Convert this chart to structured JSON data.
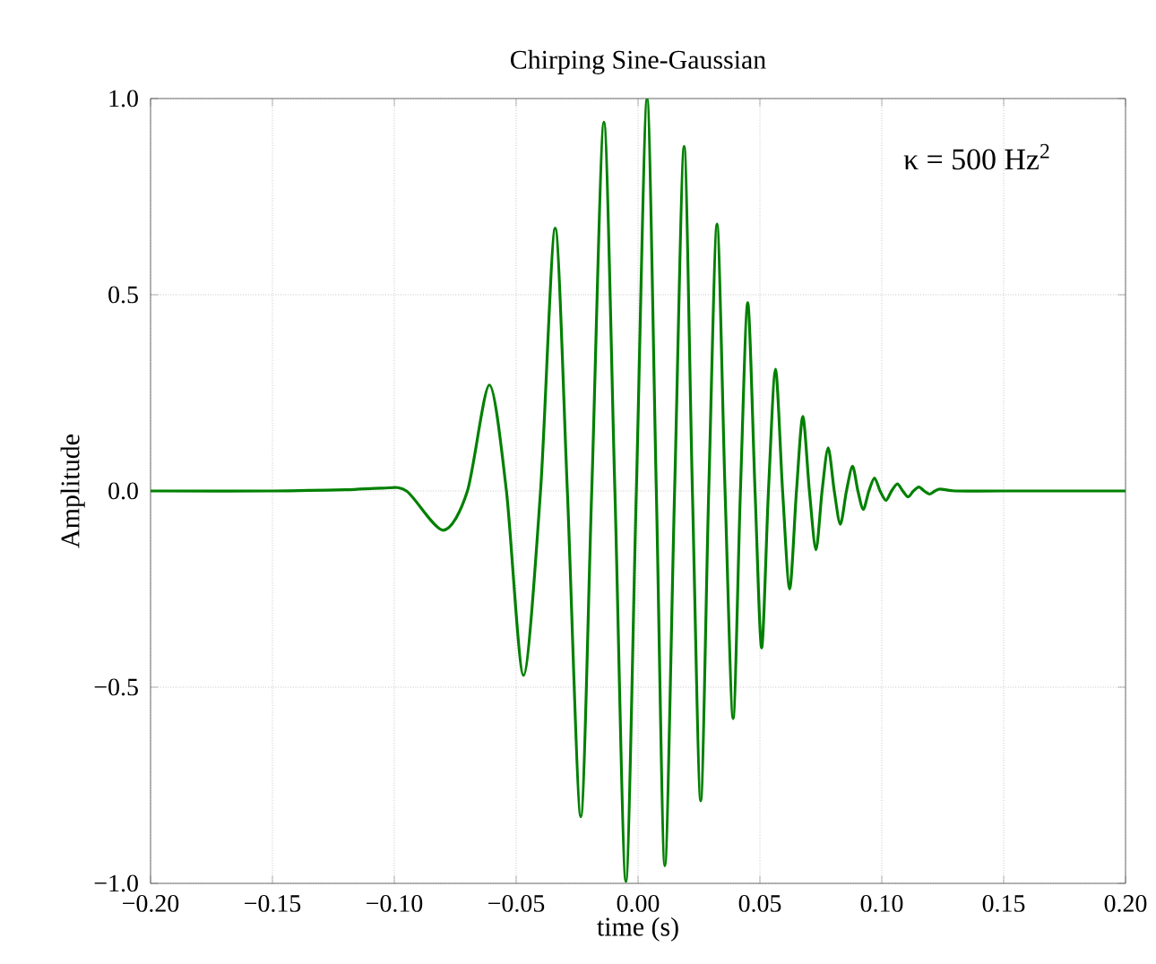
{
  "chart_data": {
    "type": "line",
    "title": "Chirping Sine-Gaussian",
    "xlabel": "time (s)",
    "ylabel": "Amplitude",
    "annotations": [
      "κ = 500 Hz$^{2}$"
    ],
    "x": [
      -0.2,
      -0.15,
      -0.12,
      -0.105,
      -0.095,
      -0.08,
      -0.07,
      -0.061,
      -0.054,
      -0.047,
      -0.04,
      -0.034,
      -0.029,
      -0.0235,
      -0.019,
      -0.014,
      -0.0095,
      -0.005,
      -0.0007,
      0.0037,
      0.0075,
      0.011,
      0.015,
      0.0189,
      0.0223,
      0.0257,
      0.029,
      0.0324,
      0.0357,
      0.039,
      0.042,
      0.045,
      0.048,
      0.0507,
      0.0535,
      0.0564,
      0.0593,
      0.0622,
      0.065,
      0.0676,
      0.0703,
      0.073,
      0.0755,
      0.078,
      0.0805,
      0.083,
      0.0855,
      0.088,
      0.0902,
      0.0924,
      0.0947,
      0.097,
      0.0993,
      0.1017,
      0.104,
      0.1064,
      0.1086,
      0.1108,
      0.113,
      0.1152,
      0.1174,
      0.1196,
      0.1218,
      0.124,
      0.13,
      0.15,
      0.2
    ],
    "series": [
      {
        "color": "#008000",
        "values": [
          0,
          0,
          0.003,
          0.007,
          0,
          -0.1,
          0,
          0.27,
          0,
          -0.47,
          0,
          0.67,
          0,
          -0.83,
          0,
          0.94,
          0,
          -0.995,
          0,
          1.0,
          0,
          -0.955,
          0,
          0.878,
          0,
          -0.79,
          0,
          0.68,
          0,
          -0.58,
          0,
          0.48,
          0,
          -0.4,
          0,
          0.31,
          0,
          -0.25,
          0,
          0.19,
          0,
          -0.15,
          0,
          0.11,
          0,
          -0.085,
          0,
          0.063,
          0,
          -0.047,
          0,
          0.033,
          0,
          -0.024,
          0,
          0.018,
          0,
          -0.015,
          0,
          0.01,
          0,
          -0.008,
          0,
          0.005,
          0,
          0,
          0
        ]
      }
    ],
    "xlim": [
      -0.2,
      0.2
    ],
    "ylim": [
      -1.0,
      1.0
    ],
    "xticks": [
      {
        "value": -0.2,
        "label": "−0.20"
      },
      {
        "value": -0.15,
        "label": "−0.15"
      },
      {
        "value": -0.1,
        "label": "−0.10"
      },
      {
        "value": -0.05,
        "label": "−0.05"
      },
      {
        "value": 0,
        "label": "0.00"
      },
      {
        "value": 0.05,
        "label": "0.05"
      },
      {
        "value": 0.1,
        "label": "0.10"
      },
      {
        "value": 0.15,
        "label": "0.15"
      },
      {
        "value": 0.2,
        "label": "0.20"
      }
    ],
    "yticks": [
      {
        "value": -1.0,
        "label": "−1.0"
      },
      {
        "value": -0.5,
        "label": "−0.5"
      },
      {
        "value": 0,
        "label": "0.0"
      },
      {
        "value": 0.5,
        "label": "0.5"
      },
      {
        "value": 1.0,
        "label": "1.0"
      }
    ],
    "grid": true,
    "line_style": "solid",
    "marker": "none"
  }
}
